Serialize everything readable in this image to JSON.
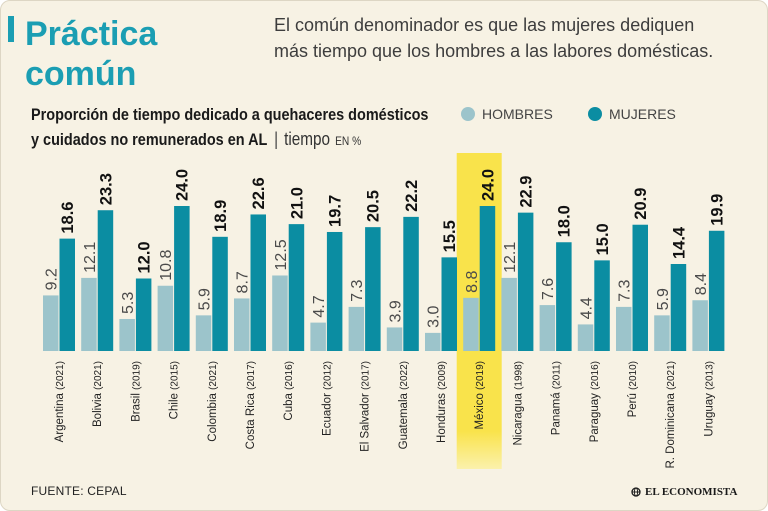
{
  "header": {
    "title_line1": "Práctica",
    "title_line2": "común",
    "subtitle_line1": "El común denominador es que las mujeres dediquen",
    "subtitle_line2": "más tiempo que los hombres a las labores domésticas."
  },
  "chart_data": {
    "type": "bar",
    "title_line1": "Proporción de tiempo dedicado a quehaceres domésticos",
    "title_line2": "y cuidados no remunerados en AL",
    "unit_separator": "|",
    "unit_label": "tiempo",
    "unit_suffix": "EN %",
    "categories": [
      "Argentina (2021)",
      "Bolivia (2021)",
      "Brasil (2019)",
      "Chile (2015)",
      "Colombia (2021)",
      "Costa Rica (2017)",
      "Cuba (2016)",
      "Ecuador (2012)",
      "El Salvador (2017)",
      "Guatemala (2022)",
      "Honduras (2009)",
      "México (2019)",
      "Nicaragua (1998)",
      "Panamá (2011)",
      "Paraguay (2016)",
      "Perú (2010)",
      "R. Dominicana (2021)",
      "Uruguay (2013)"
    ],
    "series": [
      {
        "name": "HOMBRES",
        "values": [
          9.2,
          12.1,
          5.3,
          10.8,
          5.9,
          8.7,
          12.5,
          4.7,
          7.3,
          3.9,
          3.0,
          8.8,
          12.1,
          7.6,
          4.4,
          7.3,
          5.9,
          8.4
        ]
      },
      {
        "name": "MUJERES",
        "values": [
          18.6,
          23.3,
          12.0,
          24.0,
          18.9,
          22.6,
          21.0,
          19.7,
          20.5,
          22.2,
          15.5,
          24.0,
          22.9,
          18.0,
          15.0,
          20.9,
          14.4,
          19.9
        ]
      }
    ],
    "highlight_index": 11
  },
  "footer": {
    "source": "FUENTE: CEPAL",
    "logo_text": "EL ECONOMISTA"
  },
  "colors": {
    "title": "#1b9eb3",
    "hombres": "#9cc4cb",
    "mujeres": "#0b8da2",
    "highlight": "#f9e34b",
    "highlight_fade": "#fbf1ac",
    "background": "#f7f2e4"
  }
}
